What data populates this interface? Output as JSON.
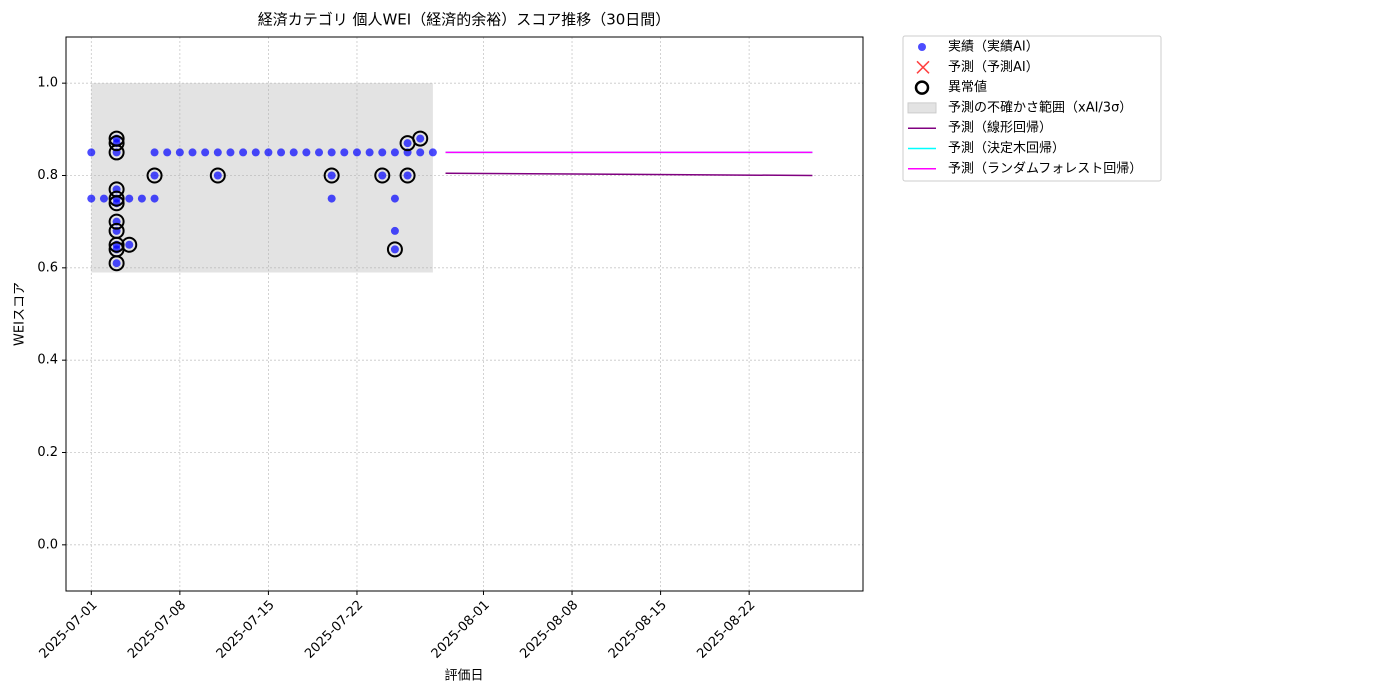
{
  "chart_data": {
    "type": "scatter",
    "title": "経済カテゴリ 個人WEI（経済的余裕）スコア推移（30日間）",
    "xlabel": "評価日",
    "ylabel": "WEIスコア",
    "xlim": [
      "2025-06-29",
      "2025-08-31"
    ],
    "xticks": [
      "2025-07-01",
      "2025-07-08",
      "2025-07-15",
      "2025-07-22",
      "2025-08-01",
      "2025-08-08",
      "2025-08-15",
      "2025-08-22"
    ],
    "ylim": [
      -0.1,
      1.1
    ],
    "yticks": [
      {
        "value": 0,
        "label": "0.0"
      },
      0.2,
      0.4,
      0.6,
      0.8,
      {
        "value": 1,
        "label": "1.0"
      }
    ],
    "grid": true,
    "legend": "outside upper right",
    "series": [
      {
        "name": "実績（実績AI）",
        "kind": "points",
        "color": "#0000ff",
        "x": [
          "2025-07-01",
          "2025-07-01",
          "2025-07-02",
          "2025-07-03",
          "2025-07-03",
          "2025-07-03",
          "2025-07-03",
          "2025-07-03",
          "2025-07-03",
          "2025-07-03",
          "2025-07-03",
          "2025-07-03",
          "2025-07-03",
          "2025-07-03",
          "2025-07-04",
          "2025-07-04",
          "2025-07-05",
          "2025-07-06",
          "2025-07-06",
          "2025-07-06",
          "2025-07-07",
          "2025-07-08",
          "2025-07-09",
          "2025-07-10",
          "2025-07-11",
          "2025-07-11",
          "2025-07-12",
          "2025-07-13",
          "2025-07-14",
          "2025-07-15",
          "2025-07-16",
          "2025-07-17",
          "2025-07-18",
          "2025-07-19",
          "2025-07-20",
          "2025-07-20",
          "2025-07-20",
          "2025-07-21",
          "2025-07-22",
          "2025-07-23",
          "2025-07-24",
          "2025-07-24",
          "2025-07-25",
          "2025-07-25",
          "2025-07-25",
          "2025-07-25",
          "2025-07-26",
          "2025-07-26",
          "2025-07-26",
          "2025-07-27",
          "2025-07-27",
          "2025-07-28"
        ],
        "values": [
          0.85,
          0.75,
          0.75,
          0.75,
          0.65,
          0.61,
          0.64,
          0.68,
          0.7,
          0.74,
          0.77,
          0.85,
          0.87,
          0.88,
          0.65,
          0.75,
          0.75,
          0.75,
          0.8,
          0.85,
          0.85,
          0.85,
          0.85,
          0.85,
          0.8,
          0.85,
          0.85,
          0.85,
          0.85,
          0.85,
          0.85,
          0.85,
          0.85,
          0.85,
          0.75,
          0.8,
          0.85,
          0.85,
          0.85,
          0.85,
          0.8,
          0.85,
          0.75,
          0.85,
          0.68,
          0.64,
          0.8,
          0.85,
          0.87,
          0.88,
          0.85,
          0.85
        ]
      },
      {
        "name": "予測（予測AI）",
        "kind": "cross",
        "color": "#ff0000",
        "x": [],
        "values": []
      },
      {
        "name": "異常値",
        "kind": "ring",
        "color": "#000000",
        "x": [
          "2025-07-03",
          "2025-07-03",
          "2025-07-03",
          "2025-07-03",
          "2025-07-03",
          "2025-07-03",
          "2025-07-03",
          "2025-07-03",
          "2025-07-03",
          "2025-07-03",
          "2025-07-03",
          "2025-07-04",
          "2025-07-06",
          "2025-07-11",
          "2025-07-20",
          "2025-07-24",
          "2025-07-25",
          "2025-07-26",
          "2025-07-26",
          "2025-07-27"
        ],
        "values": [
          0.65,
          0.61,
          0.64,
          0.68,
          0.7,
          0.74,
          0.75,
          0.77,
          0.85,
          0.87,
          0.88,
          0.65,
          0.8,
          0.8,
          0.8,
          0.8,
          0.64,
          0.8,
          0.87,
          0.88
        ]
      },
      {
        "name": "予測の不確かさ範囲（xAI/3σ）",
        "kind": "band",
        "color": "#b0b0b0",
        "x": [
          "2025-07-01",
          "2025-07-28"
        ],
        "lower": [
          0.59,
          0.59
        ],
        "upper": [
          1,
          1
        ]
      },
      {
        "name": "予測（線形回帰）",
        "kind": "line",
        "color": "#800080",
        "x": [
          "2025-07-29",
          "2025-08-27"
        ],
        "values": [
          0.805,
          0.8
        ]
      },
      {
        "name": "予測（決定木回帰）",
        "kind": "line",
        "color": "#00ffff",
        "x": [
          "2025-07-29",
          "2025-08-27"
        ],
        "values": [
          0.85,
          0.85
        ]
      },
      {
        "name": "予測（ランダムフォレスト回帰）",
        "kind": "line",
        "color": "#ff00ff",
        "x": [
          "2025-07-29",
          "2025-08-27"
        ],
        "values": [
          0.85,
          0.85
        ]
      }
    ]
  }
}
